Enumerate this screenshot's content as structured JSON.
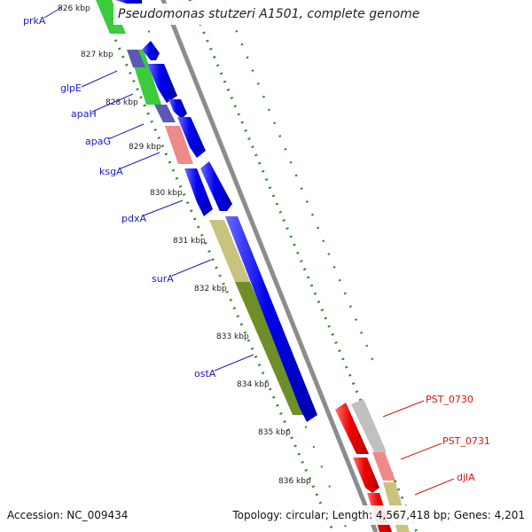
{
  "title": "Pseudomonas stutzeri A1501, complete genome",
  "footer": {
    "accession": "Accession: NC_009434",
    "topology": "Topology: circular; Length: 4,567,418 bp; Genes: 4,201"
  },
  "colors": {
    "cds": "#0000ee",
    "backbone": "#8c8c8c",
    "tick": "#2e8b2e",
    "forward_label": "#1a1acc",
    "reverse_label": "#dd1111",
    "ruler_label": "#222222"
  },
  "ruler_labels": [
    "826 kbp",
    "827 kbp",
    "828 kbp",
    "829 kbp",
    "830 kbp",
    "831 kbp",
    "832 kbp",
    "833 kbp",
    "834 kbp",
    "835 kbp",
    "836 kbp"
  ],
  "gene_labels_forward": [
    "prkA",
    "glpE",
    "apaH",
    "apaG",
    "ksgA",
    "pdxA",
    "surA",
    "ostA"
  ],
  "gene_labels_reverse": [
    "PST_0730",
    "PST_0731",
    "djlA"
  ],
  "cog_colors": {
    "forward": [
      "#3bcc3b",
      "#3bcc3b",
      "#5a5ab4",
      "#3bcc3b",
      "#5a5ab4",
      "#ef8a8a",
      "#c8c37f",
      "#6e8e28"
    ],
    "reverse": [
      "#c0c0c0",
      "#ef8a8a",
      "#c8c37f"
    ]
  }
}
